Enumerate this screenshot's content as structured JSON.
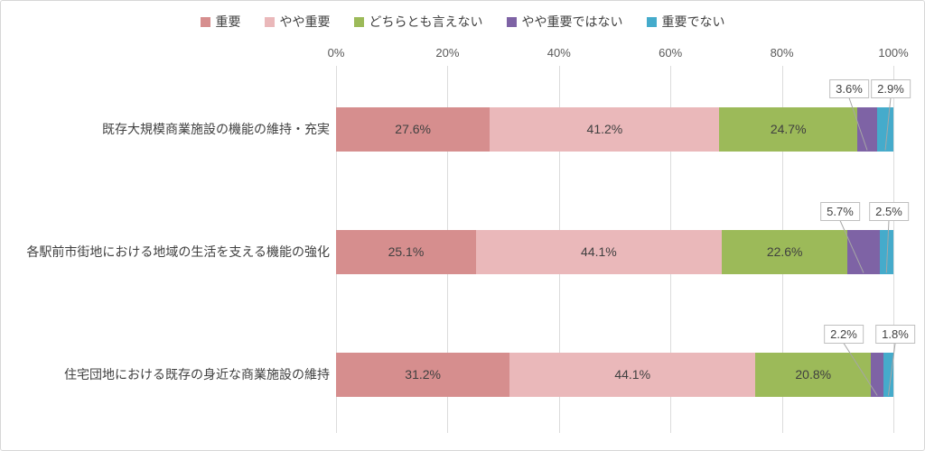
{
  "chart_data": {
    "type": "bar",
    "orientation": "horizontal",
    "stacked": true,
    "title": "",
    "xlabel": "",
    "ylabel": "",
    "x_axis": {
      "min": 0,
      "max": 100,
      "ticks": [
        "0%",
        "20%",
        "40%",
        "60%",
        "80%",
        "100%"
      ]
    },
    "grid": true,
    "legend_position": "top",
    "categories": [
      "既存大規模商業施設の機能の維持・充実",
      "各駅前市街地における地域の生活を支える機能の強化",
      "住宅団地における既存の身近な商業施設の維持"
    ],
    "series": [
      {
        "name": "重要",
        "color": "#d68e8e",
        "values": [
          27.6,
          25.1,
          31.2
        ]
      },
      {
        "name": "やや重要",
        "color": "#eab8ba",
        "values": [
          41.2,
          44.1,
          44.1
        ]
      },
      {
        "name": "どちらとも言えない",
        "color": "#9cba59",
        "values": [
          24.7,
          22.6,
          20.8
        ]
      },
      {
        "name": "やや重要ではない",
        "color": "#7e63a5",
        "values": [
          3.6,
          5.7,
          2.2
        ]
      },
      {
        "name": "重要でない",
        "color": "#45abcb",
        "values": [
          2.9,
          2.5,
          1.8
        ]
      }
    ],
    "value_label_suffix": "%",
    "callout_values": [
      [
        "3.6%",
        "2.9%"
      ],
      [
        "5.7%",
        "2.5%"
      ],
      [
        "2.2%",
        "1.8%"
      ]
    ]
  },
  "colors": {
    "grid": "#dcdcdc",
    "axis_text": "#595959",
    "label_text": "#404040",
    "callout_border": "#bfbfbf",
    "leader_line": "#a6a6a6",
    "canvas_border": "#d7d7d7"
  }
}
